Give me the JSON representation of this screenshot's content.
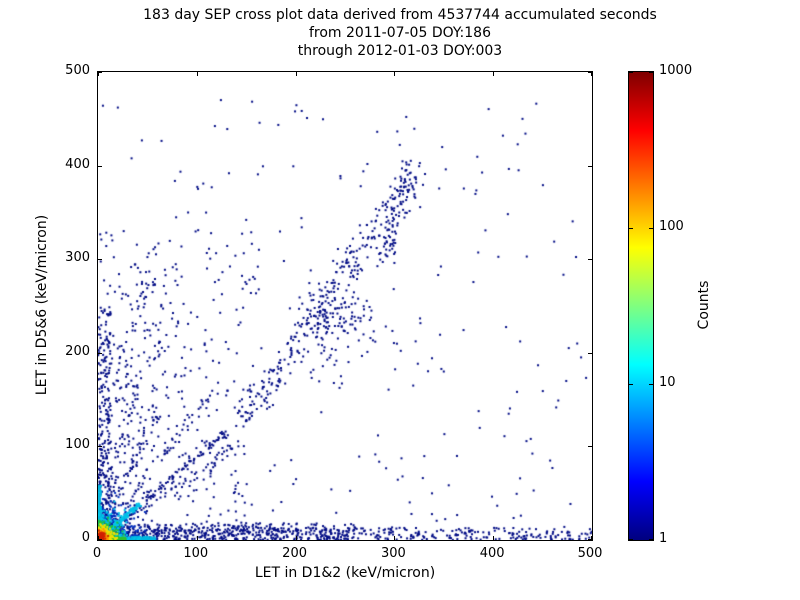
{
  "chart_data": {
    "type": "scatter",
    "title_lines": [
      "183 day SEP cross plot data derived from 4537744 accumulated seconds",
      "from 2011-07-05 DOY:186",
      "through 2012-01-03 DOY:003"
    ],
    "xlabel": "LET in D1&2 (keV/micron)",
    "ylabel": "LET in D5&6 (keV/micron)",
    "xlim": [
      0,
      500
    ],
    "ylim": [
      0,
      500
    ],
    "xticks": [
      0,
      100,
      200,
      300,
      400,
      500
    ],
    "yticks": [
      0,
      100,
      200,
      300,
      400,
      500
    ],
    "grid": false,
    "background": "#ffffff",
    "colorbar": {
      "label": "Counts",
      "scale": "log",
      "min": 1,
      "max": 1000,
      "ticks": [
        1,
        10,
        100,
        1000
      ],
      "colormap": "jet",
      "gradient": [
        "#00007f",
        "#0000ff",
        "#00ffff",
        "#ffff00",
        "#ff0000",
        "#7f0000"
      ]
    },
    "point_color_single_count": "#000c85",
    "clusters": [
      {
        "name": "sparse-field",
        "type": "uniform",
        "x0": 0,
        "x1": 500,
        "y0": 0,
        "y1": 470,
        "count": 240,
        "color": "#000c85",
        "size": 2
      },
      {
        "name": "sparse-left-field",
        "type": "uniform",
        "x0": 0,
        "x1": 160,
        "y0": 0,
        "y1": 330,
        "count": 260,
        "color": "#000c85",
        "size": 2
      },
      {
        "name": "left-wedge",
        "type": "line",
        "x0": 0,
        "y0": 0,
        "x1": 60,
        "y1": 290,
        "jitter": 22,
        "count": 160,
        "color": "#000c85",
        "size": 2
      },
      {
        "name": "fan-line-1",
        "type": "line",
        "x0": 0,
        "y0": 0,
        "x1": 110,
        "y1": 150,
        "jitter": 5,
        "count": 70,
        "color": "#000c85",
        "size": 2
      },
      {
        "name": "fan-line-2",
        "type": "line",
        "x0": 0,
        "y0": 0,
        "x1": 70,
        "y1": 160,
        "jitter": 5,
        "count": 60,
        "color": "#000c85",
        "size": 2
      },
      {
        "name": "fan-line-3",
        "type": "line",
        "x0": 0,
        "y0": 0,
        "x1": 150,
        "y1": 110,
        "jitter": 6,
        "count": 60,
        "color": "#000c85",
        "size": 2
      },
      {
        "name": "fan-line-4",
        "type": "line",
        "x0": 0,
        "y0": 0,
        "x1": 40,
        "y1": 170,
        "jitter": 4,
        "count": 50,
        "color": "#000c85",
        "size": 2
      },
      {
        "name": "identity-diagonal",
        "type": "line",
        "x0": 0,
        "y0": 0,
        "x1": 130,
        "y1": 115,
        "jitter": 4,
        "count": 130,
        "color": "#000c85",
        "size": 2
      },
      {
        "name": "bottom-band-far",
        "type": "uniform",
        "x0": 0,
        "x1": 500,
        "y0": 0,
        "y1": 13,
        "count": 420,
        "color": "#000c85",
        "size": 2
      },
      {
        "name": "bottom-band-near",
        "type": "uniform",
        "x0": 0,
        "x1": 260,
        "y0": 0,
        "y1": 18,
        "count": 330,
        "color": "#000c85",
        "size": 2
      },
      {
        "name": "left-band",
        "type": "uniform",
        "x0": 0,
        "x1": 14,
        "y0": 0,
        "y1": 250,
        "count": 240,
        "color": "#000c85",
        "size": 2
      },
      {
        "name": "mid-diagonal-cluster",
        "type": "line",
        "x0": 150,
        "y0": 130,
        "x1": 320,
        "y1": 395,
        "jitter": 13,
        "count": 270,
        "color": "#000c85",
        "size": 2
      },
      {
        "name": "mid-diagonal-knot",
        "type": "gaussian",
        "cx": 240,
        "cy": 235,
        "sx": 20,
        "sy": 20,
        "count": 130,
        "color": "#000c85",
        "size": 2
      },
      {
        "name": "upper-diagonal-arm",
        "type": "line",
        "x0": 290,
        "y0": 300,
        "x1": 320,
        "y1": 400,
        "jitter": 8,
        "count": 80,
        "color": "#000c85",
        "size": 2
      },
      {
        "name": "outliers",
        "type": "points",
        "count": 13,
        "color": "#000c85",
        "size": 2,
        "pts": [
          [
            5,
            464
          ],
          [
            312,
            452
          ],
          [
            331,
            391
          ],
          [
            352,
            396
          ],
          [
            26,
            330
          ],
          [
            150,
            342
          ],
          [
            108,
            210
          ],
          [
            428,
            26
          ],
          [
            472,
            14
          ],
          [
            438,
            108
          ],
          [
            350,
            180
          ],
          [
            300,
            296
          ],
          [
            258,
            322
          ]
        ]
      },
      {
        "name": "origin-halo-blue",
        "type": "gaussian",
        "cx": 7,
        "cy": 7,
        "sx": 16,
        "sy": 16,
        "count": 380,
        "color": "#0030c0",
        "size": 2
      },
      {
        "name": "bottom-streak-cyan",
        "type": "uniform",
        "x0": 0,
        "x1": 58,
        "y0": 0,
        "y1": 3.5,
        "count": 260,
        "color": "#00b8e0",
        "size": 2
      },
      {
        "name": "left-streak-cyan",
        "type": "uniform",
        "x0": 0,
        "x1": 3,
        "y0": 0,
        "y1": 58,
        "count": 170,
        "color": "#00b8e0",
        "size": 2
      },
      {
        "name": "diagonal-cyan",
        "type": "line",
        "x0": 0,
        "y0": 0,
        "x1": 42,
        "y1": 38,
        "jitter": 2,
        "count": 150,
        "color": "#00c0e8",
        "size": 2
      },
      {
        "name": "origin-blob-cyan",
        "type": "gaussian",
        "cx": 6,
        "cy": 6,
        "sx": 12,
        "sy": 12,
        "count": 300,
        "color": "#00c8e8",
        "size": 2
      },
      {
        "name": "origin-blob-green",
        "type": "gaussian",
        "cx": 5,
        "cy": 5,
        "sx": 8,
        "sy": 8,
        "count": 280,
        "color": "#20c040",
        "size": 2
      },
      {
        "name": "bottom-streak-green",
        "type": "uniform",
        "x0": 0,
        "x1": 28,
        "y0": 0,
        "y1": 2.5,
        "count": 150,
        "color": "#30c030",
        "size": 2
      },
      {
        "name": "origin-blob-yellow",
        "type": "gaussian",
        "cx": 4,
        "cy": 4,
        "sx": 5.5,
        "sy": 5.5,
        "count": 240,
        "color": "#f0e000",
        "size": 2
      },
      {
        "name": "bottom-streak-yellow",
        "type": "uniform",
        "x0": 0,
        "x1": 12,
        "y0": 0,
        "y1": 1.8,
        "count": 90,
        "color": "#f0e000",
        "size": 2
      },
      {
        "name": "origin-blob-orange",
        "type": "gaussian",
        "cx": 3,
        "cy": 3,
        "sx": 3.5,
        "sy": 3.5,
        "count": 200,
        "color": "#ff9000",
        "size": 2
      },
      {
        "name": "origin-core-red",
        "type": "gaussian",
        "cx": 2.2,
        "cy": 2.2,
        "sx": 2.2,
        "sy": 2.2,
        "count": 180,
        "color": "#d02000",
        "size": 2
      }
    ]
  }
}
